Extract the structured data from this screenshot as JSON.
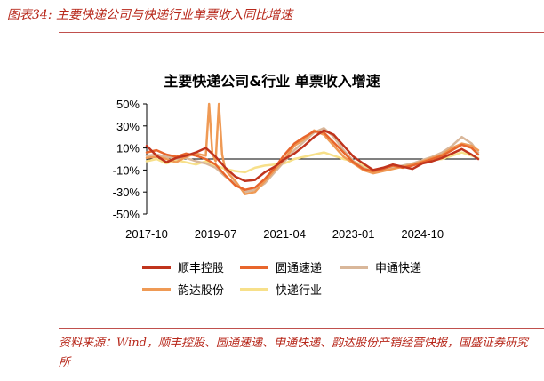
{
  "figure_caption": "图表34:  主要快递公司与快递行业单票收入同比增速",
  "source_note": "资料来源：Wind，顺丰控股、圆通速递、申通快递、韵达股份产销经营快报，国盛证券研究所",
  "colors": {
    "caption_red": "#b7271a",
    "rule": "#c0504d",
    "series": [
      "#c0341d",
      "#e8662c",
      "#d9b79a",
      "#ef9a55",
      "#f7e08a"
    ]
  },
  "chart_data": {
    "type": "line",
    "title": "主要快递公司&行业  单票收入增速",
    "xlabel": "",
    "ylabel": "",
    "ylim": [
      -50,
      50
    ],
    "y_ticks": [
      50,
      30,
      10,
      -10,
      -30,
      -50
    ],
    "y_tick_labels": [
      "50%",
      "30%",
      "10%",
      "-10%",
      "-30%",
      "-50%"
    ],
    "x_tick_labels": [
      "2017-10",
      "2019-07",
      "2021-04",
      "2023-01",
      "2024-10"
    ],
    "x_range": [
      "2017-10",
      "2026-03"
    ],
    "grid": false,
    "legend_position": "bottom",
    "series": [
      {
        "name": "顺丰控股",
        "dates": [
          "2017-10",
          "2018-01",
          "2018-04",
          "2018-07",
          "2018-10",
          "2019-01",
          "2019-04",
          "2019-07",
          "2019-10",
          "2020-01",
          "2020-04",
          "2020-07",
          "2020-10",
          "2021-01",
          "2021-04",
          "2021-07",
          "2021-10",
          "2022-01",
          "2022-04",
          "2022-07",
          "2022-10",
          "2023-01",
          "2023-04",
          "2023-07",
          "2023-10",
          "2024-01",
          "2024-04",
          "2024-07",
          "2024-10",
          "2025-01",
          "2025-04",
          "2025-07",
          "2025-10",
          "2026-01",
          "2026-03"
        ],
        "values": [
          12,
          3,
          -3,
          1,
          3,
          6,
          10,
          2,
          -8,
          -16,
          -20,
          -19,
          -12,
          -7,
          0,
          5,
          12,
          20,
          26,
          22,
          12,
          2,
          -4,
          -10,
          -8,
          -5,
          -7,
          -9,
          -4,
          -2,
          1,
          5,
          9,
          4,
          0
        ]
      },
      {
        "name": "圆通速递",
        "dates": [
          "2017-10",
          "2018-01",
          "2018-04",
          "2018-07",
          "2018-10",
          "2019-01",
          "2019-04",
          "2019-07",
          "2019-10",
          "2020-01",
          "2020-04",
          "2020-07",
          "2020-10",
          "2021-01",
          "2021-04",
          "2021-07",
          "2021-10",
          "2022-01",
          "2022-04",
          "2022-07",
          "2022-10",
          "2023-01",
          "2023-04",
          "2023-07",
          "2023-10",
          "2024-01",
          "2024-04",
          "2024-07",
          "2024-10",
          "2025-01",
          "2025-04",
          "2025-07",
          "2025-10",
          "2026-01",
          "2026-03"
        ],
        "values": [
          6,
          8,
          4,
          2,
          5,
          3,
          0,
          -5,
          -15,
          -24,
          -28,
          -26,
          -18,
          -8,
          4,
          14,
          20,
          25,
          24,
          15,
          6,
          -3,
          -9,
          -11,
          -9,
          -6,
          -8,
          -6,
          -3,
          0,
          3,
          8,
          13,
          10,
          4
        ]
      },
      {
        "name": "申通快递",
        "dates": [
          "2017-10",
          "2018-01",
          "2018-04",
          "2018-07",
          "2018-10",
          "2019-01",
          "2019-04",
          "2019-07",
          "2019-10",
          "2020-01",
          "2020-04",
          "2020-07",
          "2020-10",
          "2021-01",
          "2021-04",
          "2021-07",
          "2021-10",
          "2022-01",
          "2022-04",
          "2022-07",
          "2022-10",
          "2023-01",
          "2023-04",
          "2023-07",
          "2023-10",
          "2024-01",
          "2024-04",
          "2024-07",
          "2024-10",
          "2025-01",
          "2025-04",
          "2025-07",
          "2025-10",
          "2026-01",
          "2026-03"
        ],
        "values": [
          3,
          4,
          2,
          0,
          1,
          -2,
          -4,
          -8,
          -16,
          -22,
          -30,
          -28,
          -22,
          -12,
          -2,
          8,
          16,
          24,
          28,
          20,
          8,
          -2,
          -8,
          -12,
          -10,
          -8,
          -6,
          -4,
          -1,
          2,
          6,
          12,
          20,
          14,
          6
        ]
      },
      {
        "name": "韵达股份",
        "dates": [
          "2017-10",
          "2018-01",
          "2018-04",
          "2018-07",
          "2018-10",
          "2019-01",
          "2019-04",
          "2019-05",
          "2019-06",
          "2019-07",
          "2019-08",
          "2019-09",
          "2019-10",
          "2020-01",
          "2020-04",
          "2020-07",
          "2020-10",
          "2021-01",
          "2021-04",
          "2021-07",
          "2021-10",
          "2022-01",
          "2022-04",
          "2022-07",
          "2022-10",
          "2023-01",
          "2023-04",
          "2023-07",
          "2023-10",
          "2024-01",
          "2024-04",
          "2024-07",
          "2024-10",
          "2025-01",
          "2025-04",
          "2025-07",
          "2025-10",
          "2026-01",
          "2026-03"
        ],
        "values": [
          1,
          2,
          0,
          -3,
          2,
          5,
          3,
          50,
          5,
          -2,
          50,
          4,
          -10,
          -20,
          -32,
          -30,
          -20,
          -10,
          0,
          12,
          18,
          26,
          22,
          12,
          2,
          -4,
          -10,
          -13,
          -11,
          -9,
          -7,
          -5,
          -2,
          1,
          4,
          10,
          14,
          12,
          8
        ]
      },
      {
        "name": "快递行业",
        "dates": [
          "2017-10",
          "2018-01",
          "2018-04",
          "2018-07",
          "2018-10",
          "2019-01",
          "2019-04",
          "2019-07",
          "2019-10",
          "2020-01",
          "2020-04",
          "2020-07",
          "2020-10",
          "2021-01",
          "2021-04",
          "2021-07",
          "2021-10",
          "2022-01",
          "2022-04",
          "2022-07",
          "2022-10",
          "2023-01",
          "2023-04",
          "2023-07",
          "2023-10",
          "2024-01",
          "2024-04",
          "2024-07",
          "2024-10",
          "2025-01",
          "2025-04",
          "2025-07",
          "2025-10",
          "2026-01",
          "2026-03"
        ],
        "values": [
          -2,
          0,
          -4,
          -1,
          -3,
          -5,
          -2,
          -6,
          -9,
          -11,
          -12,
          -8,
          -6,
          -5,
          -4,
          0,
          2,
          4,
          6,
          3,
          0,
          -2,
          -6,
          -12,
          -9,
          -6,
          -7,
          -4,
          -3,
          -1,
          0,
          3,
          6,
          3,
          1
        ]
      }
    ]
  }
}
